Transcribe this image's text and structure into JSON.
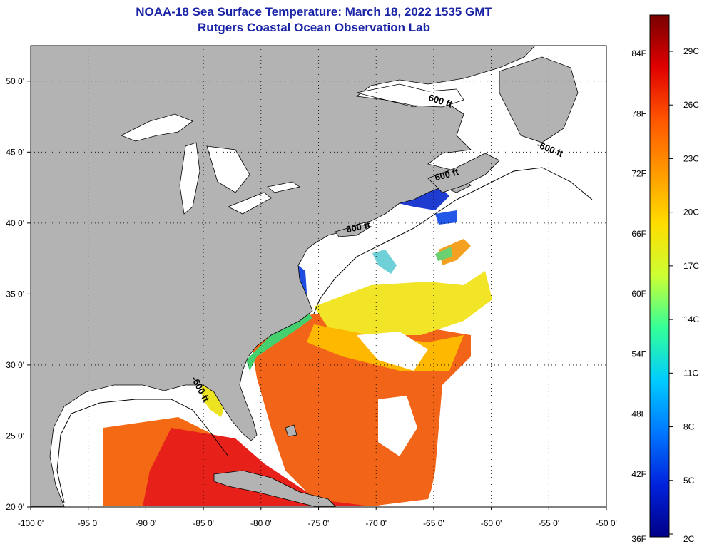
{
  "title": {
    "line1": "NOAA-18 Sea Surface Temperature:  March 18, 2022 1535 GMT",
    "line2": "Rutgers Coastal Ocean Observation Lab"
  },
  "map": {
    "lon_range": [
      -100,
      -50
    ],
    "lat_range": [
      20,
      52.5
    ],
    "lon_ticks": [
      {
        "v": -100,
        "label": "-100 0'"
      },
      {
        "v": -95,
        "label": "-95 0'"
      },
      {
        "v": -90,
        "label": "-90 0'"
      },
      {
        "v": -85,
        "label": "-85 0'"
      },
      {
        "v": -80,
        "label": "-80 0'"
      },
      {
        "v": -75,
        "label": "-75 0'"
      },
      {
        "v": -70,
        "label": "-70 0'"
      },
      {
        "v": -65,
        "label": "-65 0'"
      },
      {
        "v": -60,
        "label": "-60 0'"
      },
      {
        "v": -55,
        "label": "-55 0'"
      },
      {
        "v": -50,
        "label": "-50 0'"
      }
    ],
    "lat_ticks": [
      {
        "v": 20,
        "label": "20 0'"
      },
      {
        "v": 25,
        "label": "25 0'"
      },
      {
        "v": 30,
        "label": "30 0'"
      },
      {
        "v": 35,
        "label": "35 0'"
      },
      {
        "v": 40,
        "label": "40 0'"
      },
      {
        "v": 45,
        "label": "45 0'"
      },
      {
        "v": 50,
        "label": "50 0'"
      }
    ],
    "grid": "dotted",
    "land_color": "#b3b3b3",
    "no_data_color": "#ffffff",
    "contour_labels": [
      {
        "text": "600 ft",
        "lon": -64.5,
        "lat": 48.4,
        "rotate": 18
      },
      {
        "text": "-600 ft",
        "lon": -55.0,
        "lat": 45.0,
        "rotate": 22
      },
      {
        "text": "600 ft",
        "lon": -63.8,
        "lat": 43.2,
        "rotate": -15
      },
      {
        "text": "600 ft",
        "lon": -71.5,
        "lat": 39.5,
        "rotate": -12
      },
      {
        "text": "-600 ft",
        "lon": -85.5,
        "lat": 28.2,
        "rotate": 62
      }
    ]
  },
  "colorbar": {
    "f_labels": [
      "84F",
      "78F",
      "72F",
      "66F",
      "60F",
      "54F",
      "48F",
      "42F",
      "36F"
    ],
    "c_labels": [
      "29C",
      "26C",
      "23C",
      "20C",
      "17C",
      "14C",
      "11C",
      "8C",
      "5C",
      "2C"
    ],
    "colors": [
      "#780000",
      "#e00000",
      "#ff5500",
      "#ff9900",
      "#ffdd00",
      "#ccff33",
      "#33ff99",
      "#00ccff",
      "#0077ff",
      "#0022dd",
      "#000088"
    ]
  }
}
